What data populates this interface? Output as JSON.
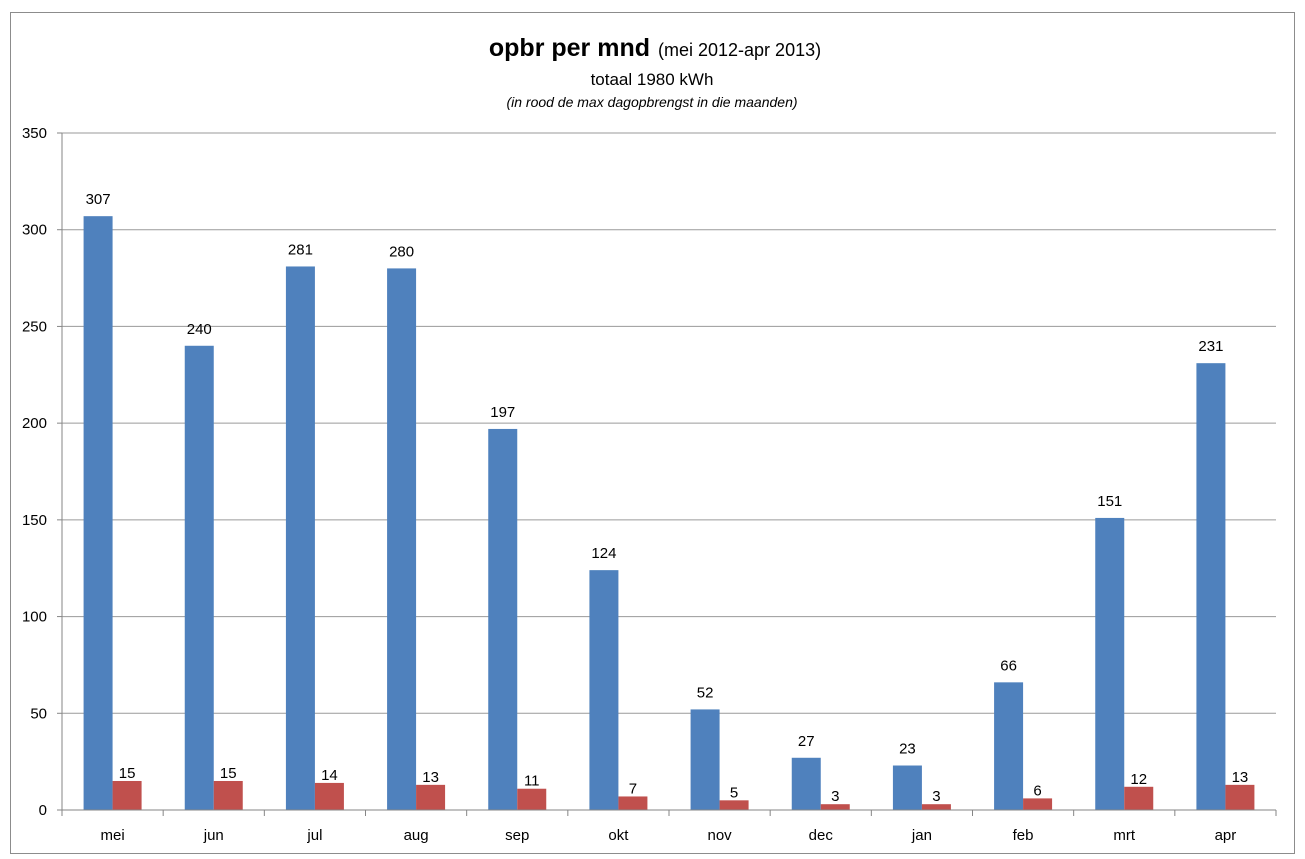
{
  "chart_data": {
    "type": "bar",
    "title": "opbr per mnd",
    "title_suffix": "(mei 2012-apr 2013)",
    "subtitle": "totaal 1980 kWh",
    "note": "(in rood de max dagopbrengst in die maanden)",
    "categories": [
      "mei",
      "jun",
      "jul",
      "aug",
      "sep",
      "okt",
      "nov",
      "dec",
      "jan",
      "feb",
      "mrt",
      "apr"
    ],
    "series": [
      {
        "values": [
          307,
          240,
          281,
          280,
          197,
          124,
          52,
          27,
          23,
          66,
          151,
          231
        ],
        "color": "#4f81bd"
      },
      {
        "values": [
          15,
          15,
          14,
          13,
          11,
          7,
          5,
          3,
          3,
          6,
          12,
          13
        ],
        "color": "#c0504d"
      }
    ],
    "ylim": [
      0,
      350
    ],
    "yticks": [
      0,
      50,
      100,
      150,
      200,
      250,
      300,
      350
    ],
    "grid": true,
    "data_labels": true,
    "colors": {
      "gridline": "#9a9a9a",
      "axis": "#868686",
      "frame": "#8c8c8c"
    }
  }
}
